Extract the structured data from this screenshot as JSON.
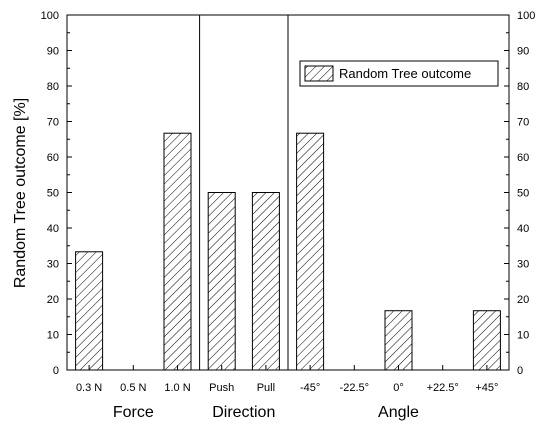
{
  "chart_data": {
    "type": "bar",
    "ylabel": "Random Tree outcome [%]",
    "ylim": [
      0,
      100
    ],
    "yticks": [
      0,
      10,
      20,
      30,
      40,
      50,
      60,
      70,
      80,
      90,
      100
    ],
    "categories": [
      "0.3 N",
      "0.5 N",
      "1.0 N",
      "Push",
      "Pull",
      "-45°",
      "-22.5°",
      "0°",
      "+22.5°",
      "+45°"
    ],
    "series": [
      {
        "name": "Random Tree outcome",
        "values": [
          33.3,
          0,
          66.7,
          50,
          50,
          66.7,
          0,
          16.7,
          0,
          16.7
        ]
      }
    ],
    "groups": [
      {
        "label": "Force",
        "categories": [
          "0.3 N",
          "0.5 N",
          "1.0 N"
        ]
      },
      {
        "label": "Direction",
        "categories": [
          "Push",
          "Pull"
        ]
      },
      {
        "label": "Angle",
        "categories": [
          "-45°",
          "-22.5°",
          "0°",
          "+22.5°",
          "+45°"
        ]
      }
    ],
    "legend_position": "top-right",
    "bar_pattern": "diagonal-hatch",
    "grid": false
  }
}
